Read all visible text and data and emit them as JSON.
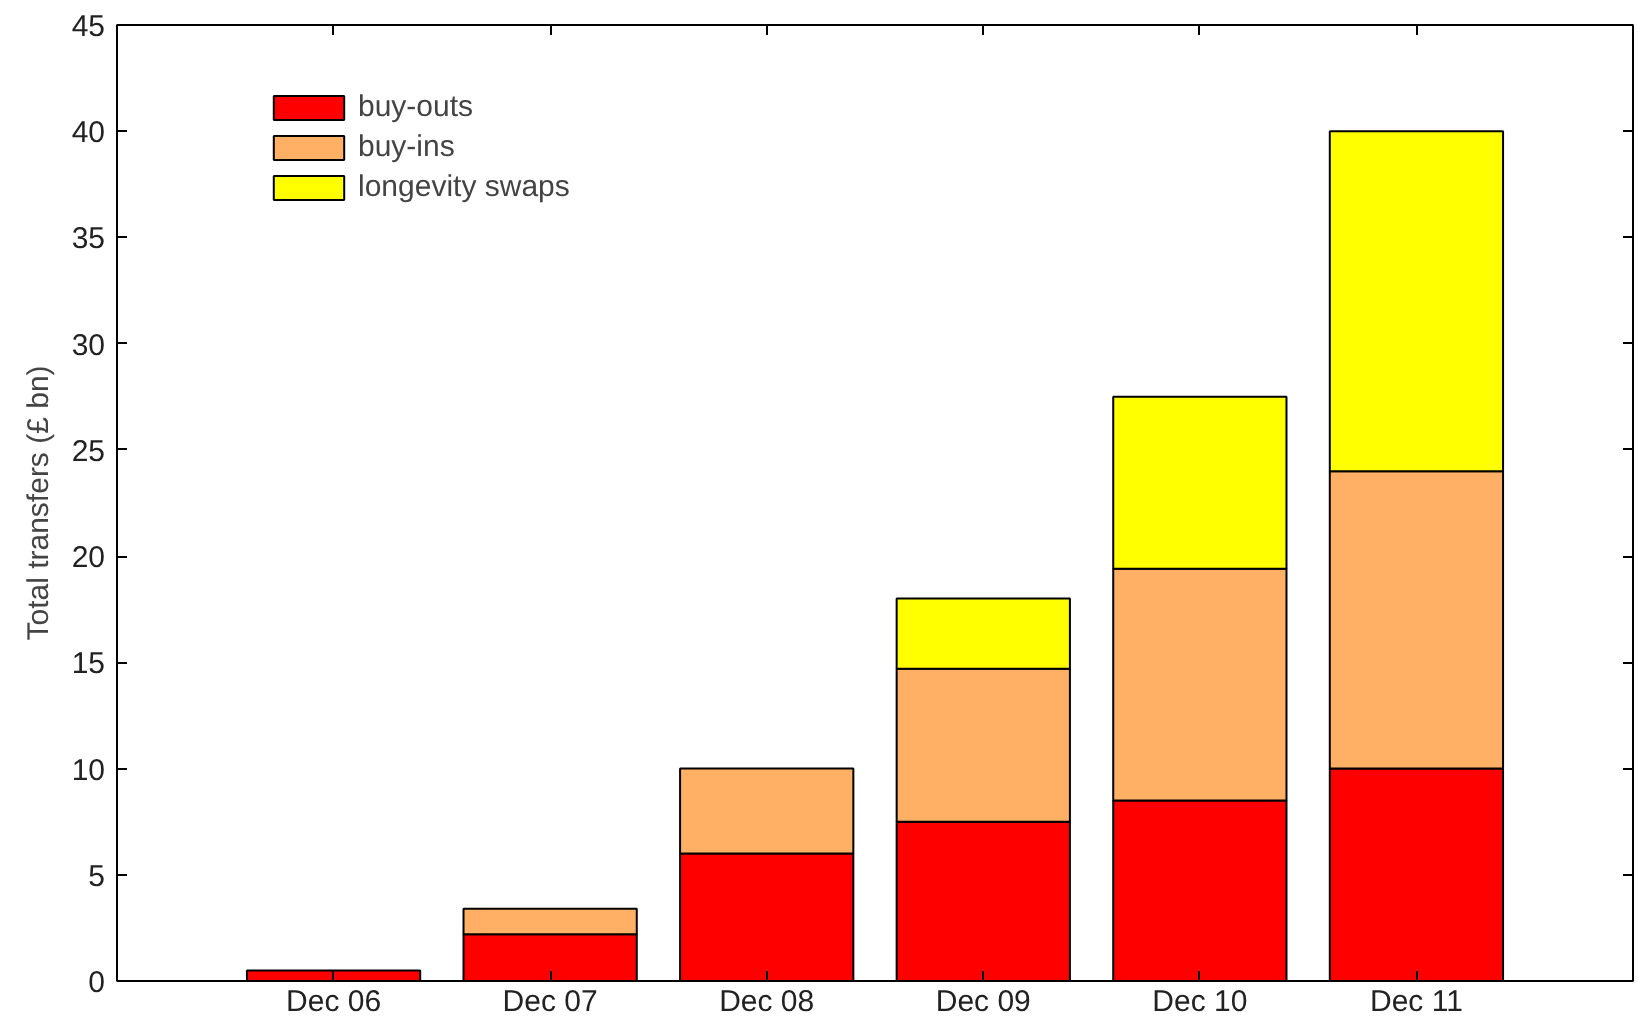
{
  "chart_data": {
    "type": "bar",
    "stacked": true,
    "categories": [
      "Dec 06",
      "Dec 07",
      "Dec 08",
      "Dec 09",
      "Dec 10",
      "Dec 11"
    ],
    "ylabel": "Total transfers (£ bn)",
    "ylim": [
      0,
      45
    ],
    "yticks": [
      0,
      5,
      10,
      15,
      20,
      25,
      30,
      35,
      40,
      45
    ],
    "legend": "top left",
    "series": [
      {
        "name": "buy-outs",
        "color": "#ff0000",
        "values": [
          0.5,
          2.2,
          6,
          7.5,
          8.5,
          10
        ]
      },
      {
        "name": "buy-ins",
        "color": "#ffb064",
        "values": [
          null,
          1.2,
          4,
          7.2,
          10.9,
          14
        ]
      },
      {
        "name": "longevity swaps",
        "color": "#ffff00",
        "values": [
          null,
          null,
          null,
          3.3,
          8.1,
          16
        ]
      }
    ]
  }
}
